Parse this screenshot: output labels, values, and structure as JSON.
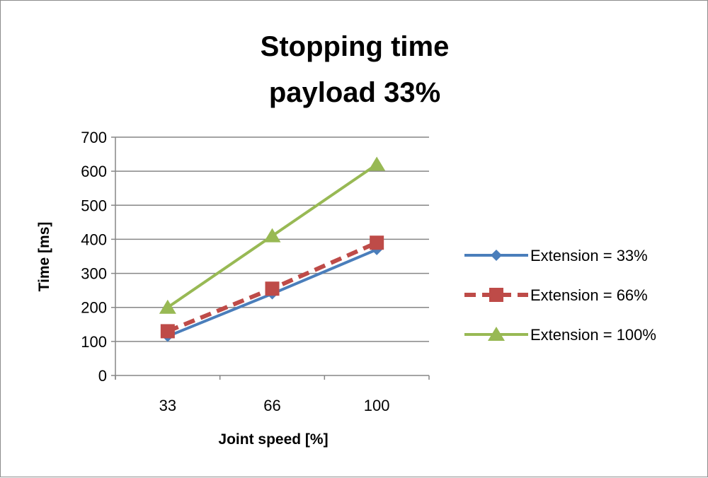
{
  "chart_data": {
    "type": "line",
    "title": [
      "Stopping time",
      "payload 33%"
    ],
    "xlabel": "Joint speed [%]",
    "ylabel": "Time [ms]",
    "categories": [
      "33",
      "66",
      "100"
    ],
    "ylim": [
      0,
      700
    ],
    "yticks": [
      0,
      100,
      200,
      300,
      400,
      500,
      600,
      700
    ],
    "grid": true,
    "legend_position": "right",
    "series": [
      {
        "name": "Extension = 33%",
        "values": [
          115,
          240,
          370
        ],
        "color": "#4a7ebb",
        "marker": "diamond",
        "dash": false
      },
      {
        "name": "Extension = 66%",
        "values": [
          130,
          255,
          390
        ],
        "color": "#be4b48",
        "marker": "square",
        "dash": true
      },
      {
        "name": "Extension = 100%",
        "values": [
          200,
          410,
          620
        ],
        "color": "#98b954",
        "marker": "triangle",
        "dash": false
      }
    ]
  }
}
